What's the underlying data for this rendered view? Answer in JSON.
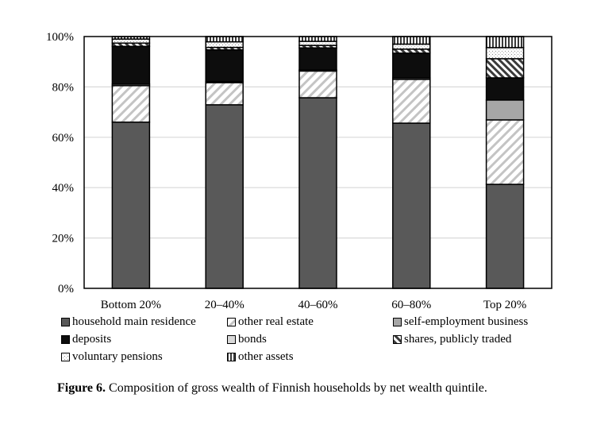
{
  "chart_data": {
    "type": "bar",
    "stacked": true,
    "title": "",
    "xlabel": "",
    "ylabel": "",
    "ylim": [
      0,
      100
    ],
    "yticks": [
      "0%",
      "20%",
      "40%",
      "60%",
      "80%",
      "100%"
    ],
    "ytick_values": [
      0,
      20,
      40,
      60,
      80,
      100
    ],
    "grid": true,
    "legend_position": "bottom",
    "categories": [
      "Bottom 20%",
      "20–40%",
      "40–60%",
      "60–80%",
      "Top 20%"
    ],
    "series": [
      {
        "name": "household main residence",
        "pattern": "solid-dark",
        "color": "#595959",
        "values": [
          66.0,
          72.9,
          75.7,
          65.6,
          41.3
        ]
      },
      {
        "name": "other real estate",
        "pattern": "diagonal-light",
        "color": "#c8c8c8",
        "values": [
          14.5,
          8.8,
          10.6,
          17.4,
          25.6
        ]
      },
      {
        "name": "self-employment business",
        "pattern": "solid-medium",
        "color": "#a6a6a6",
        "values": [
          0.6,
          0.4,
          0.4,
          0.6,
          7.9
        ]
      },
      {
        "name": "deposits",
        "pattern": "solid-black",
        "color": "#0d0d0d",
        "values": [
          15.0,
          12.6,
          8.8,
          9.8,
          8.8
        ]
      },
      {
        "name": "bonds",
        "pattern": "solid-light",
        "color": "#d9d9d9",
        "values": [
          0,
          0,
          0,
          0,
          0
        ]
      },
      {
        "name": "shares, publicly traded",
        "pattern": "diagonal-dark",
        "color": "#404040",
        "values": [
          1.3,
          1.0,
          1.0,
          1.6,
          7.6
        ]
      },
      {
        "name": "voluntary pensions",
        "pattern": "dots",
        "color": "#b0b0b0",
        "values": [
          1.6,
          2.2,
          1.6,
          2.0,
          4.4
        ]
      },
      {
        "name": "other assets",
        "pattern": "vertical-stripes",
        "color": "#404040",
        "values": [
          1.0,
          2.1,
          1.9,
          3.0,
          4.4
        ]
      }
    ]
  },
  "caption": {
    "label": "Figure 6.",
    "text": " Composition of gross wealth of Finnish households by net wealth quintile."
  }
}
